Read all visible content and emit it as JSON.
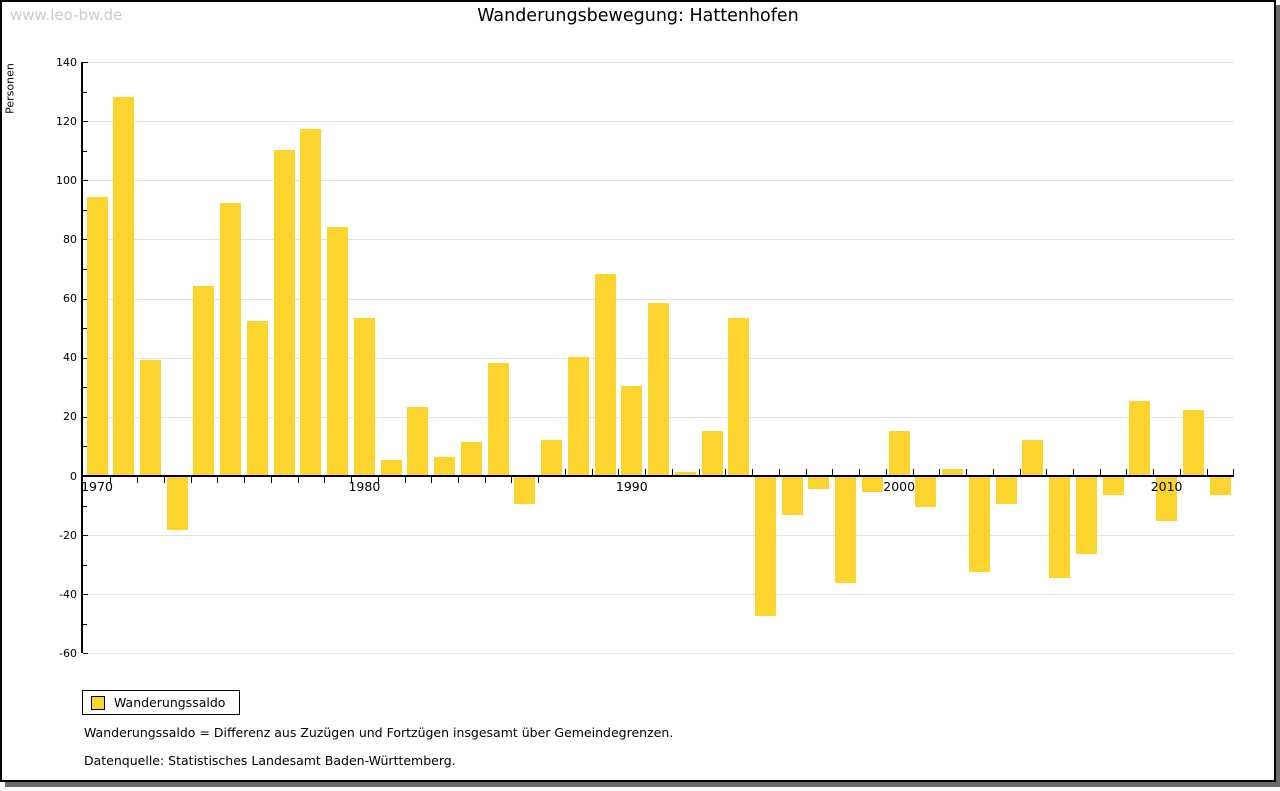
{
  "watermark": "www.leo-bw.de",
  "title": "Wanderungsbewegung: Hattenhofen",
  "chart_data": {
    "type": "bar",
    "title": "Wanderungsbewegung: Hattenhofen",
    "xlabel": "",
    "ylabel": "Personen",
    "ylim": [
      -60,
      140
    ],
    "ytick_step": 20,
    "ytick_minor_step": 10,
    "grid": true,
    "bar_color": "#FBD52D",
    "axis_color": "#000000",
    "gridline_color": "#e2e2e2",
    "x_axis_labels": [
      "1970",
      "1980",
      "1990",
      "2000",
      "2010"
    ],
    "years": [
      1970,
      1971,
      1972,
      1973,
      1974,
      1975,
      1976,
      1977,
      1978,
      1979,
      1980,
      1981,
      1982,
      1983,
      1984,
      1985,
      1986,
      1987,
      1988,
      1989,
      1990,
      1991,
      1992,
      1993,
      1994,
      1995,
      1996,
      1997,
      1998,
      1999,
      2000,
      2001,
      2002,
      2003,
      2004,
      2005,
      2006,
      2007,
      2008,
      2009,
      2010,
      2011,
      2012
    ],
    "series": [
      {
        "name": "Wanderungssaldo",
        "values": [
          94,
          128,
          39,
          -18,
          64,
          92,
          52,
          110,
          117,
          84,
          53,
          5,
          23,
          6,
          11,
          38,
          -9,
          12,
          40,
          68,
          30,
          58,
          1,
          15,
          53,
          -47,
          -13,
          -4,
          -36,
          -5,
          15,
          -10,
          2,
          -32,
          -9,
          12,
          -34,
          -26,
          -6,
          25,
          -15,
          22,
          -6
        ]
      }
    ],
    "legend": {
      "label": "Wanderungssaldo",
      "position": "bottom-left",
      "color": "#FBD52D"
    }
  },
  "footnotes": {
    "definition": "Wanderungssaldo = Differenz aus Zuzügen und Fortzügen insgesamt über Gemeindegrenzen.",
    "source": "Datenquelle: Statistisches Landesamt Baden-Württemberg."
  }
}
